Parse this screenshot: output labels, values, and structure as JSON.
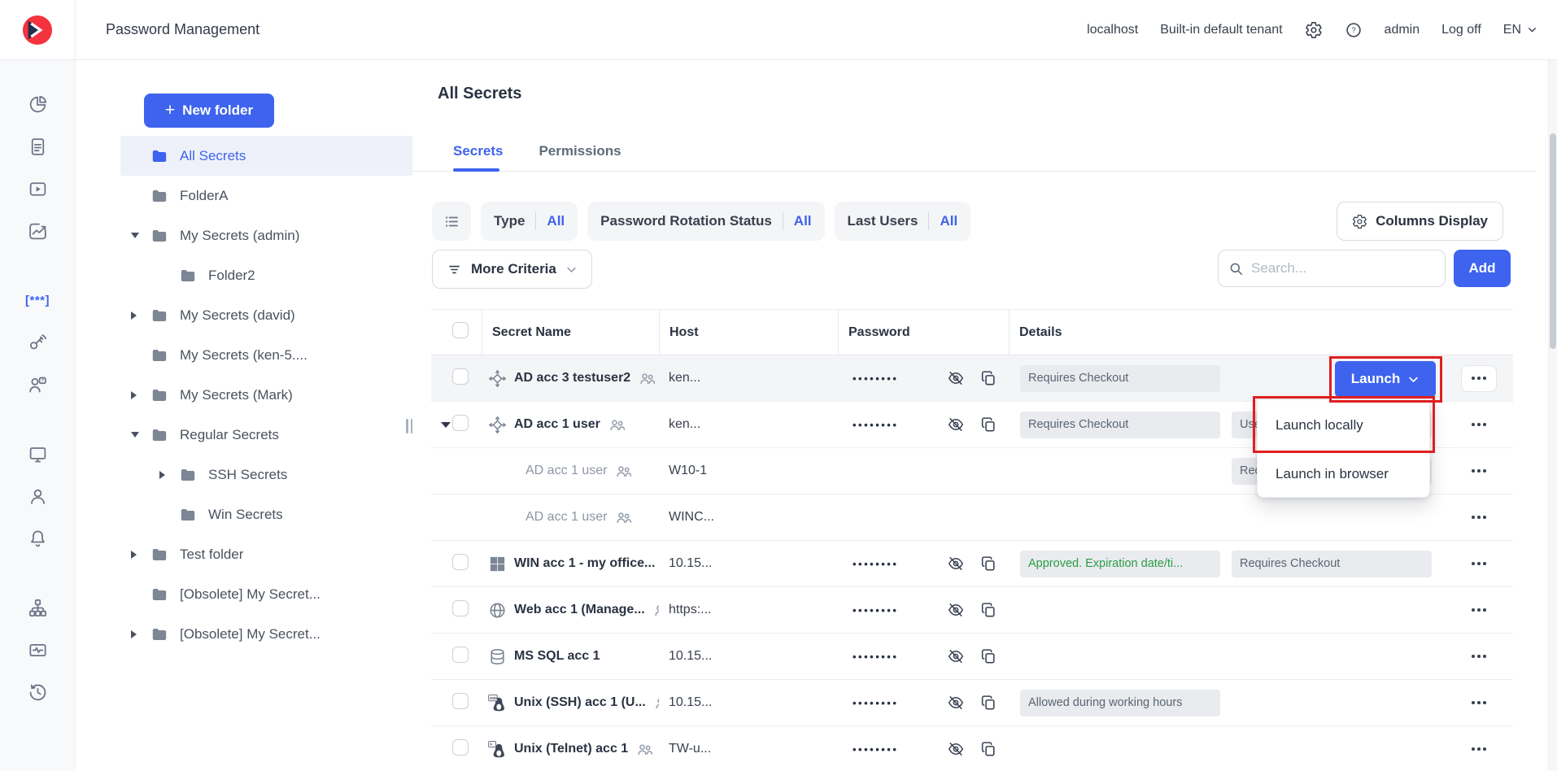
{
  "colors": {
    "accent": "#3E63EE",
    "annotation_red": "#E01E1E",
    "badge_green_text": "#2A9D45",
    "badge_bg": "#E9EBEE"
  },
  "topbar": {
    "title": "Password Management",
    "host": "localhost",
    "tenant": "Built-in default tenant",
    "user": "admin",
    "logoff": "Log off",
    "lang": "EN"
  },
  "rail": [
    {
      "name": "pie-chart"
    },
    {
      "name": "reports"
    },
    {
      "name": "video-tutorials"
    },
    {
      "name": "activity-chart"
    },
    {
      "name": "passwords",
      "glyph": "[***]",
      "active": true
    },
    {
      "name": "provisioning-key"
    },
    {
      "name": "access-requests"
    },
    {
      "name": "remote-sessions"
    },
    {
      "name": "users"
    },
    {
      "name": "notifications"
    },
    {
      "name": "sitemap"
    },
    {
      "name": "system-health"
    },
    {
      "name": "history"
    }
  ],
  "sidebar": {
    "new_folder_plus": "+",
    "new_folder_label": "New folder",
    "tree": [
      {
        "label": "All Secrets",
        "depth": 0,
        "caret": "none",
        "selected": true
      },
      {
        "label": "FolderA",
        "depth": 0,
        "caret": "none"
      },
      {
        "label": "My Secrets (admin)",
        "depth": 0,
        "caret": "down"
      },
      {
        "label": "Folder2",
        "depth": 1,
        "caret": "none"
      },
      {
        "label": "My Secrets (david)",
        "depth": 0,
        "caret": "right"
      },
      {
        "label": "My Secrets (ken-5....",
        "depth": 0,
        "caret": "none"
      },
      {
        "label": "My Secrets (Mark)",
        "depth": 0,
        "caret": "right"
      },
      {
        "label": "Regular Secrets",
        "depth": 0,
        "caret": "down"
      },
      {
        "label": "SSH Secrets",
        "depth": 1,
        "caret": "right"
      },
      {
        "label": "Win Secrets",
        "depth": 1,
        "caret": "none"
      },
      {
        "label": "Test folder",
        "depth": 0,
        "caret": "right"
      },
      {
        "label": "[Obsolete] My Secret...",
        "depth": 0,
        "caret": "none"
      },
      {
        "label": "[Obsolete] My Secret...",
        "depth": 0,
        "caret": "right"
      }
    ]
  },
  "main": {
    "heading": "All Secrets",
    "tabs": [
      {
        "label": "Secrets",
        "active": true
      },
      {
        "label": "Permissions",
        "active": false
      }
    ],
    "filters": {
      "chips": [
        {
          "label": "Type",
          "value": "All"
        },
        {
          "label": "Password Rotation Status",
          "value": "All"
        },
        {
          "label": "Last Users",
          "value": "All"
        }
      ],
      "more_criteria": "More Criteria",
      "columns_display": "Columns Display"
    },
    "search_placeholder": "Search...",
    "add_label": "Add",
    "table": {
      "columns": [
        "Secret Name",
        "Host",
        "Password",
        "Details"
      ],
      "password_mask": "••••••••",
      "rows": [
        {
          "name": "AD acc 3 testuser2",
          "icon": "ad",
          "shared": true,
          "checkbox": true,
          "host": "ken...",
          "masked": true,
          "highlighted": true,
          "boxed_menu": true,
          "badges": [
            {
              "text": "Requires Checkout",
              "color": "gray"
            }
          ]
        },
        {
          "name": "AD acc 1 user",
          "icon": "ad",
          "shared": true,
          "checkbox": true,
          "expanded": true,
          "host": "ken...",
          "masked": true,
          "badges": [
            {
              "text": "Requires Checkout",
              "color": "gray"
            },
            {
              "text": "Use",
              "color": "gray"
            }
          ]
        },
        {
          "name": "AD acc 1 user",
          "sub": true,
          "shared": true,
          "host": "W10-1",
          "badges": [
            {
              "text": "Req",
              "color": "gray",
              "slot2": true
            }
          ]
        },
        {
          "name": "AD acc 1 user",
          "sub": true,
          "shared": true,
          "host": "WINC...",
          "badges": []
        },
        {
          "name": "WIN acc 1 - my office...",
          "icon": "win",
          "shared": true,
          "checkbox": true,
          "host": "10.15...",
          "masked": true,
          "badges": [
            {
              "text": "Approved. Expiration date/ti...",
              "color": "green"
            },
            {
              "text": "Requires Checkout",
              "color": "gray"
            }
          ]
        },
        {
          "name": "Web acc 1 (Manage...",
          "icon": "web",
          "shared": true,
          "checkbox": true,
          "host": "https:...",
          "masked": true,
          "badges": []
        },
        {
          "name": "MS SQL acc 1",
          "icon": "mssql",
          "checkbox": true,
          "host": "10.15...",
          "masked": true,
          "badges": []
        },
        {
          "name": "Unix (SSH) acc 1 (U...",
          "icon": "unix-ssh",
          "shared": true,
          "checkbox": true,
          "host": "10.15...",
          "masked": true,
          "badges": [
            {
              "text": "Allowed during working hours",
              "color": "gray"
            }
          ]
        },
        {
          "name": "Unix (Telnet) acc 1",
          "icon": "unix-telnet",
          "shared": true,
          "checkbox": true,
          "host": "TW-u...",
          "masked": true,
          "badges": []
        }
      ]
    },
    "launch": {
      "label": "Launch",
      "menu_items": [
        "Launch locally",
        "Launch in browser"
      ]
    }
  }
}
